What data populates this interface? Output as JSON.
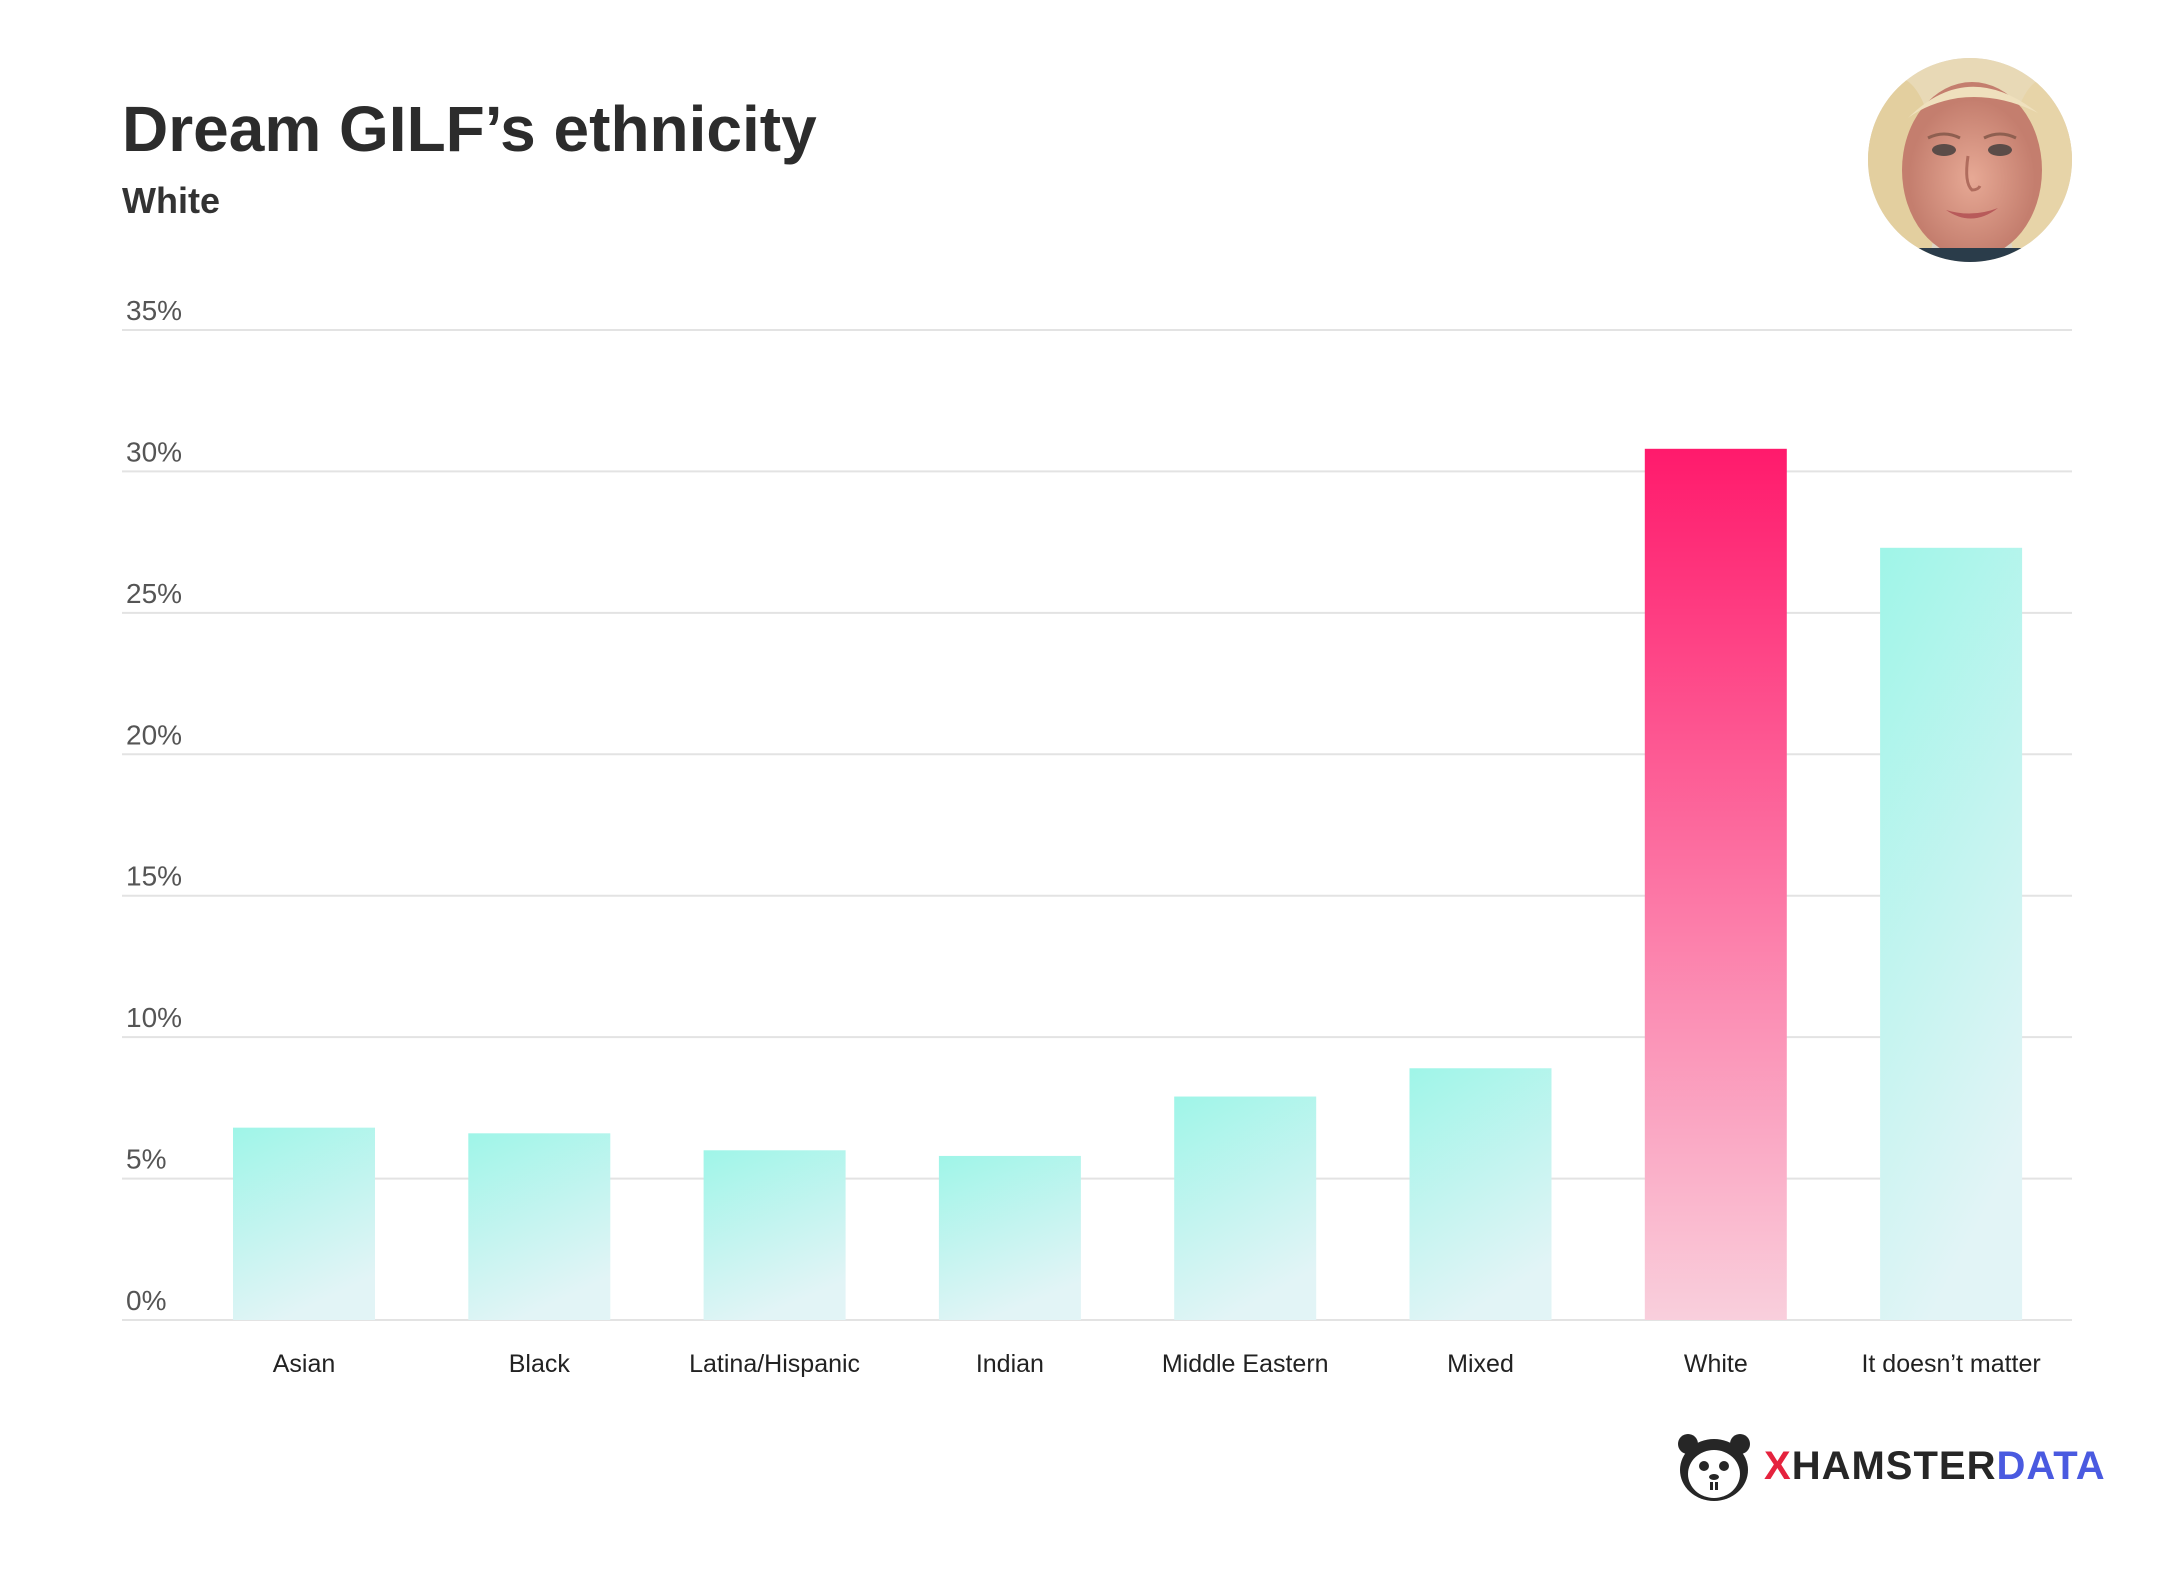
{
  "title": "Dream GILF’s ethnicity",
  "subtitle": "White",
  "logo": {
    "x": "X",
    "hamster": "HAMSTER",
    "data": "DATA",
    "icon": "hamster-face-icon"
  },
  "avatar": {
    "icon": "portrait-photo"
  },
  "colors": {
    "highlight_top": "#ff1a6c",
    "highlight_bottom": "#f9cfdc",
    "bar_top": "#9ff5e8",
    "bar_bottom": "#e2f4f6",
    "grid": "#e3e3e3"
  },
  "chart_data": {
    "type": "bar",
    "title": "Dream GILF’s ethnicity",
    "subtitle": "White",
    "categories": [
      "Asian",
      "Black",
      "Latina/Hispanic",
      "Indian",
      "Middle Eastern",
      "Mixed",
      "White",
      "It doesn’t matter"
    ],
    "values": [
      6.8,
      6.6,
      6.0,
      5.8,
      7.9,
      8.9,
      30.8,
      27.3
    ],
    "highlight_category": "White",
    "ylim": [
      0,
      35
    ],
    "yticks": [
      0,
      5,
      10,
      15,
      20,
      25,
      30,
      35
    ],
    "ytick_labels": [
      "0%",
      "5%",
      "10%",
      "15%",
      "20%",
      "25%",
      "30%",
      "35%"
    ],
    "grid": true,
    "xlabel": "",
    "ylabel": ""
  }
}
